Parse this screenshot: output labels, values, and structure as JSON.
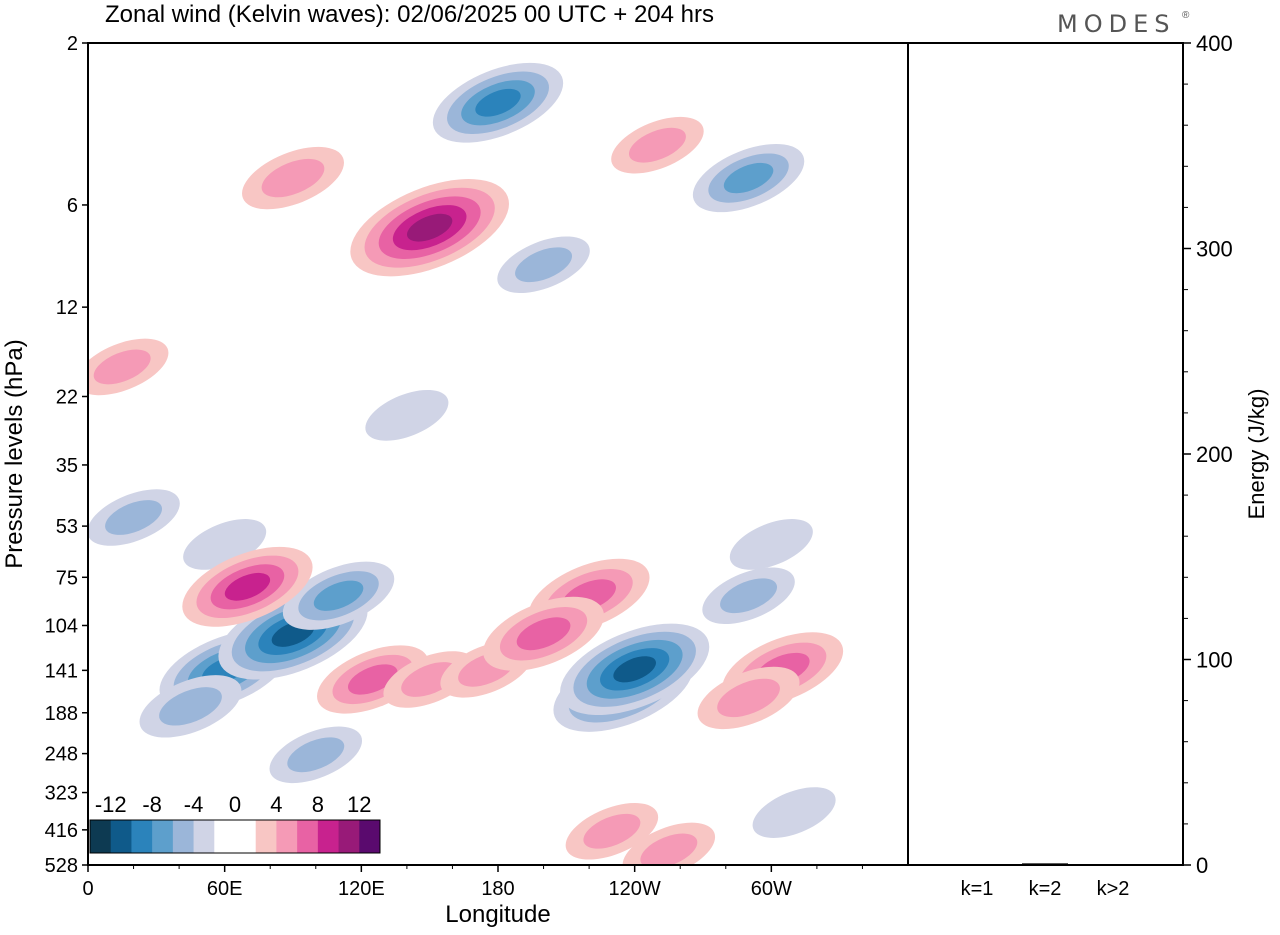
{
  "chart_data": [
    {
      "type": "heatmap",
      "title": "Zonal wind (Kelvin waves):  02/06/2025  00 UTC  + 204 hrs",
      "xlabel": "Longitude",
      "ylabel": "Pressure levels (hPa)",
      "x_ticks": [
        "0",
        "60E",
        "120E",
        "180",
        "120W",
        "60W"
      ],
      "y_ticks": [
        "2",
        "6",
        "12",
        "22",
        "35",
        "53",
        "75",
        "104",
        "141",
        "188",
        "248",
        "323",
        "416",
        "528"
      ],
      "y_scale": "log (inverted)",
      "colorbar": {
        "labels": [
          "-12",
          "-8",
          "-4",
          "0",
          "4",
          "8",
          "12"
        ],
        "colors": [
          "#0d3a52",
          "#0f5a8a",
          "#2b83bb",
          "#5d9fcc",
          "#9bb6d9",
          "#d0d4e6",
          "#ffffff",
          "#ffffff",
          "#f8c6c4",
          "#f59ab6",
          "#e862a4",
          "#c8228e",
          "#981a78",
          "#5a0a6e"
        ]
      },
      "anomalies": [
        {
          "lon": 60,
          "p": 141,
          "value": -7
        },
        {
          "lon": 90,
          "p": 110,
          "value": -9
        },
        {
          "lon": 110,
          "p": 85,
          "value": -5
        },
        {
          "lon": 45,
          "p": 180,
          "value": -4
        },
        {
          "lon": 100,
          "p": 250,
          "value": -3
        },
        {
          "lon": 235,
          "p": 160,
          "value": -8
        },
        {
          "lon": 240,
          "p": 140,
          "value": -9
        },
        {
          "lon": 290,
          "p": 85,
          "value": -3
        },
        {
          "lon": 300,
          "p": 60,
          "value": -2
        },
        {
          "lon": 20,
          "p": 50,
          "value": -3
        },
        {
          "lon": 60,
          "p": 60,
          "value": -2
        },
        {
          "lon": 140,
          "p": 25,
          "value": -2
        },
        {
          "lon": 310,
          "p": 370,
          "value": -2
        },
        {
          "lon": 125,
          "p": 150,
          "value": 5
        },
        {
          "lon": 150,
          "p": 150,
          "value": 3
        },
        {
          "lon": 175,
          "p": 140,
          "value": 3
        },
        {
          "lon": 220,
          "p": 85,
          "value": 6
        },
        {
          "lon": 200,
          "p": 110,
          "value": 6
        },
        {
          "lon": 305,
          "p": 140,
          "value": 6
        },
        {
          "lon": 290,
          "p": 170,
          "value": 4
        },
        {
          "lon": 70,
          "p": 80,
          "value": 7
        },
        {
          "lon": 230,
          "p": 420,
          "value": 3
        },
        {
          "lon": 255,
          "p": 480,
          "value": 3
        },
        {
          "lon": 150,
          "p": 7,
          "value": 10
        },
        {
          "lon": 90,
          "p": 5,
          "value": 4
        },
        {
          "lon": 250,
          "p": 4,
          "value": 3
        },
        {
          "lon": 15,
          "p": 18,
          "value": 3
        },
        {
          "lon": 180,
          "p": 3,
          "value": -7
        },
        {
          "lon": 290,
          "p": 5,
          "value": -5
        },
        {
          "lon": 200,
          "p": 9,
          "value": -3
        }
      ]
    },
    {
      "type": "bar",
      "ylabel": "Energy (J/kg)",
      "categories": [
        "k=1",
        "k=2",
        "k>2"
      ],
      "values": [
        0.3,
        0.8,
        0.3
      ],
      "ylim": [
        0,
        400
      ],
      "y_ticks": [
        "0",
        "100",
        "200",
        "300",
        "400"
      ]
    }
  ],
  "logo": {
    "text": "MODES",
    "mark": "®"
  }
}
